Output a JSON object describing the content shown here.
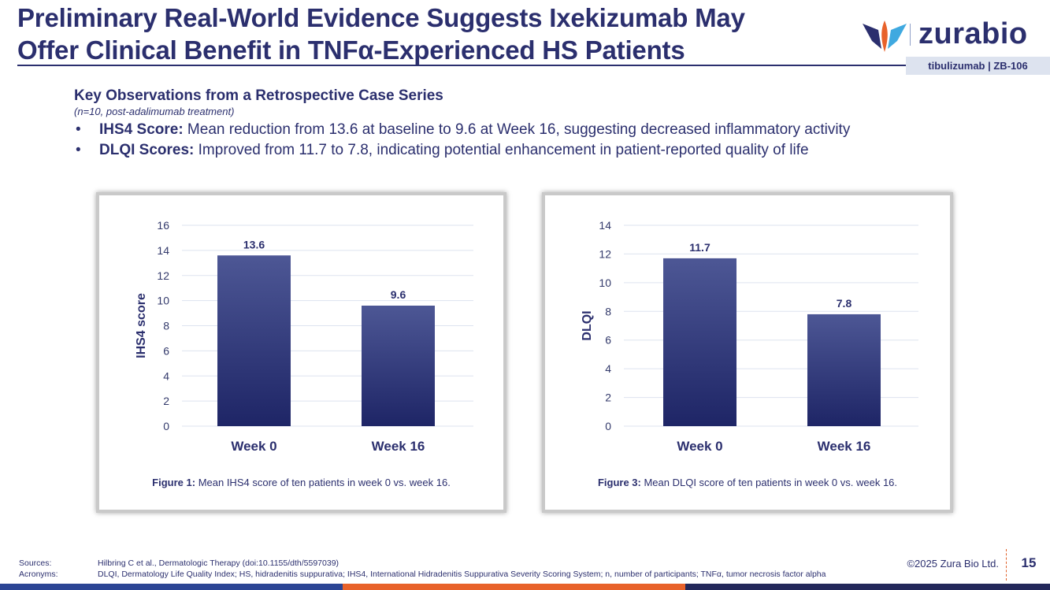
{
  "slide": {
    "title_line1": "Preliminary Real-World Evidence Suggests Ixekizumab May",
    "title_line2": "Offer Clinical Benefit in TNFα-Experienced HS Patients",
    "logo_text": "zurabio",
    "program_tag": "tibulizumab  |  ZB-106",
    "page_number": "15",
    "copyright": "©2025 Zura Bio Ltd."
  },
  "colors": {
    "brand_navy": "#2b2f6e",
    "bar_top": "#4d5795",
    "bar_bottom": "#1e2566",
    "accent_orange": "#e8622a",
    "accent_blue": "#2b4594",
    "logo_cyan": "#3fa9e0",
    "grid": "#dde3ef"
  },
  "intro": {
    "heading": "Key Observations from a Retrospective Case Series",
    "subheading": "(n=10, post-adalimumab treatment)",
    "bullet_char": "•",
    "bullets": [
      {
        "label": "IHS4 Score:",
        "text": " Mean reduction from 13.6 at baseline to 9.6 at Week 16, suggesting decreased inflammatory activity"
      },
      {
        "label": "DLQI Scores:",
        "text": " Improved from 11.7 to 7.8, indicating potential enhancement in patient-reported quality of life"
      }
    ]
  },
  "figures": [
    {
      "label": "Figure 1:",
      "caption": " Mean IHS4 score of ten patients in week 0 vs. week 16."
    },
    {
      "label": "Figure 3:",
      "caption": " Mean DLQI score of ten patients in week 0 vs. week 16."
    }
  ],
  "chart_data": [
    {
      "type": "bar",
      "title": "",
      "categories": [
        "Week 0",
        "Week 16"
      ],
      "values": [
        13.6,
        9.6
      ],
      "data_labels": [
        "13.6",
        "9.6"
      ],
      "xlabel": "",
      "ylabel": "IHS4 score",
      "ylim": [
        0,
        16
      ],
      "yticks": [
        0,
        2,
        4,
        6,
        8,
        10,
        12,
        14,
        16
      ],
      "grid": true
    },
    {
      "type": "bar",
      "title": "",
      "categories": [
        "Week 0",
        "Week 16"
      ],
      "values": [
        11.7,
        7.8
      ],
      "data_labels": [
        "11.7",
        "7.8"
      ],
      "xlabel": "",
      "ylabel": "DLQI",
      "ylim": [
        0,
        14
      ],
      "yticks": [
        0,
        2,
        4,
        6,
        8,
        10,
        12,
        14
      ],
      "grid": true
    }
  ],
  "footer": {
    "sources_label": "Sources:",
    "sources_text": "Hilbring C et al., Dermatologic Therapy (doi:10.1155/dth/5597039)",
    "acronyms_label": "Acronyms:",
    "acronyms_text": "DLQI, Dermatology Life Quality Index; HS, hidradenitis suppurativa; IHS4, International Hidradenitis Suppurativa Severity Scoring System; n, number of participants; TNFα, tumor necrosis factor alpha"
  }
}
